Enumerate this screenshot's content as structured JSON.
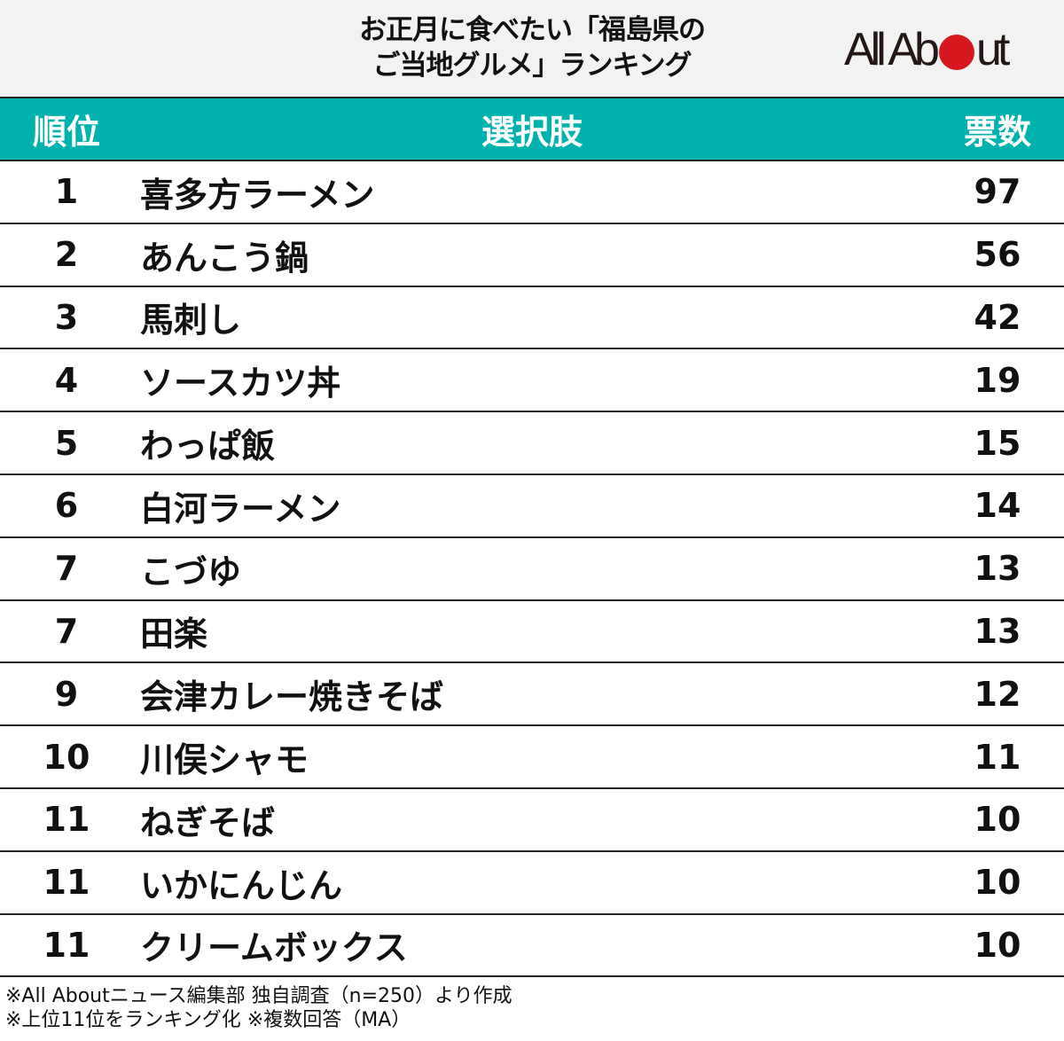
{
  "header": {
    "title_line1": "お正月に食べたい「福島県の",
    "title_line2": "ご当地グルメ」ランキング",
    "logo": {
      "text_before": "All Ab",
      "text_after": "ut",
      "dot_color": "#d7191f"
    }
  },
  "table": {
    "header_bg": "#00b1ad",
    "columns": {
      "rank": "順位",
      "name": "選択肢",
      "votes": "票数"
    },
    "rows": [
      {
        "rank": "1",
        "name": "喜多方ラーメン",
        "votes": "97"
      },
      {
        "rank": "2",
        "name": "あんこう鍋",
        "votes": "56"
      },
      {
        "rank": "3",
        "name": "馬刺し",
        "votes": "42"
      },
      {
        "rank": "4",
        "name": "ソースカツ丼",
        "votes": "19"
      },
      {
        "rank": "5",
        "name": "わっぱ飯",
        "votes": "15"
      },
      {
        "rank": "6",
        "name": "白河ラーメン",
        "votes": "14"
      },
      {
        "rank": "7",
        "name": "こづゆ",
        "votes": "13"
      },
      {
        "rank": "7",
        "name": "田楽",
        "votes": "13"
      },
      {
        "rank": "9",
        "name": "会津カレー焼きそば",
        "votes": "12"
      },
      {
        "rank": "10",
        "name": "川俣シャモ",
        "votes": "11"
      },
      {
        "rank": "11",
        "name": "ねぎそば",
        "votes": "10"
      },
      {
        "rank": "11",
        "name": "いかにんじん",
        "votes": "10"
      },
      {
        "rank": "11",
        "name": "クリームボックス",
        "votes": "10"
      }
    ]
  },
  "footer": {
    "note1": "※All Aboutニュース編集部 独自調査（n=250）より作成",
    "note2": "※上位11位をランキング化 ※複数回答（MA）"
  }
}
